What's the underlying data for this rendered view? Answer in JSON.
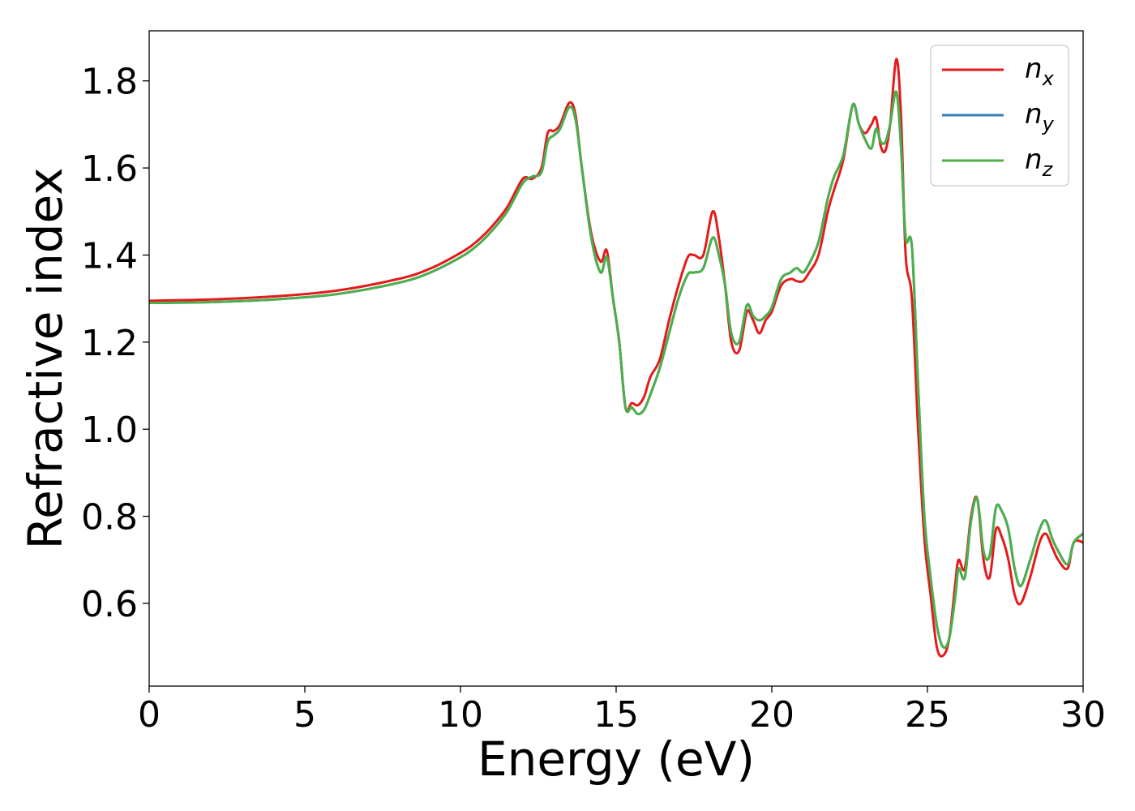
{
  "chart_data": {
    "type": "line",
    "xlabel": "Energy (eV)",
    "ylabel": "Refractive index",
    "xlim": [
      0,
      30
    ],
    "ylim": [
      0.41,
      1.915
    ],
    "xticks": [
      "0",
      "5",
      "10",
      "15",
      "20",
      "25",
      "30"
    ],
    "yticks": [
      "0.6",
      "0.8",
      "1.0",
      "1.2",
      "1.4",
      "1.6",
      "1.8"
    ],
    "legend_position": "top-right",
    "grid": false,
    "series": [
      {
        "name": "n",
        "subscript": "x",
        "color": "#e41a1c",
        "x": [
          0,
          2,
          4,
          6,
          8,
          9,
          10,
          10.5,
          11,
          11.5,
          12,
          12.3,
          12.6,
          12.8,
          13.0,
          13.2,
          13.5,
          13.7,
          13.9,
          14.2,
          14.5,
          14.7,
          14.9,
          15.1,
          15.3,
          15.5,
          15.7,
          15.9,
          16.1,
          16.4,
          16.7,
          17.0,
          17.3,
          17.5,
          17.8,
          18.1,
          18.3,
          18.5,
          18.7,
          18.95,
          19.2,
          19.4,
          19.6,
          19.8,
          20.0,
          20.3,
          20.6,
          20.8,
          21.0,
          21.2,
          21.5,
          21.8,
          22.0,
          22.3,
          22.6,
          22.8,
          23.0,
          23.2,
          23.35,
          23.5,
          23.65,
          23.8,
          24.0,
          24.15,
          24.3,
          24.5,
          24.7,
          24.9,
          25.1,
          25.3,
          25.5,
          25.7,
          25.9,
          26.0,
          26.2,
          26.4,
          26.6,
          26.8,
          27.0,
          27.2,
          27.4,
          27.6,
          27.8,
          28.0,
          28.3,
          28.6,
          28.8,
          29.0,
          29.2,
          29.5,
          29.7,
          30.0
        ],
        "y": [
          1.295,
          1.298,
          1.305,
          1.318,
          1.345,
          1.368,
          1.405,
          1.43,
          1.465,
          1.51,
          1.575,
          1.575,
          1.6,
          1.68,
          1.685,
          1.7,
          1.75,
          1.72,
          1.6,
          1.45,
          1.385,
          1.41,
          1.3,
          1.2,
          1.05,
          1.06,
          1.055,
          1.075,
          1.12,
          1.16,
          1.25,
          1.33,
          1.395,
          1.4,
          1.4,
          1.5,
          1.44,
          1.33,
          1.2,
          1.18,
          1.27,
          1.25,
          1.22,
          1.25,
          1.27,
          1.33,
          1.345,
          1.34,
          1.34,
          1.36,
          1.4,
          1.5,
          1.55,
          1.62,
          1.745,
          1.7,
          1.68,
          1.7,
          1.715,
          1.65,
          1.64,
          1.7,
          1.85,
          1.72,
          1.4,
          1.3,
          1.0,
          0.75,
          0.62,
          0.5,
          0.48,
          0.52,
          0.65,
          0.7,
          0.68,
          0.8,
          0.84,
          0.7,
          0.66,
          0.77,
          0.75,
          0.7,
          0.62,
          0.6,
          0.66,
          0.74,
          0.76,
          0.73,
          0.7,
          0.68,
          0.74,
          0.74
        ]
      },
      {
        "name": "n",
        "subscript": "y",
        "color": "#377eb8",
        "x": [
          0,
          2,
          4,
          6,
          8,
          9,
          10,
          10.5,
          11,
          11.5,
          12,
          12.3,
          12.6,
          12.8,
          13.0,
          13.2,
          13.5,
          13.7,
          13.9,
          14.2,
          14.5,
          14.7,
          14.9,
          15.1,
          15.3,
          15.5,
          15.7,
          15.9,
          16.1,
          16.4,
          16.7,
          17.0,
          17.3,
          17.5,
          17.8,
          18.1,
          18.3,
          18.5,
          18.7,
          18.95,
          19.2,
          19.4,
          19.6,
          19.8,
          20.0,
          20.3,
          20.6,
          20.8,
          21.0,
          21.2,
          21.5,
          21.8,
          22.0,
          22.3,
          22.6,
          22.8,
          23.0,
          23.2,
          23.35,
          23.5,
          23.65,
          23.8,
          24.0,
          24.15,
          24.3,
          24.5,
          24.7,
          24.9,
          25.1,
          25.3,
          25.5,
          25.7,
          25.9,
          26.0,
          26.2,
          26.4,
          26.6,
          26.8,
          27.0,
          27.2,
          27.4,
          27.6,
          27.8,
          28.0,
          28.3,
          28.6,
          28.8,
          29.0,
          29.2,
          29.5,
          29.7,
          30.0
        ],
        "y": [
          1.29,
          1.292,
          1.298,
          1.31,
          1.336,
          1.359,
          1.395,
          1.42,
          1.455,
          1.5,
          1.565,
          1.58,
          1.59,
          1.66,
          1.675,
          1.69,
          1.74,
          1.71,
          1.6,
          1.44,
          1.36,
          1.395,
          1.3,
          1.2,
          1.05,
          1.05,
          1.035,
          1.045,
          1.08,
          1.14,
          1.22,
          1.3,
          1.355,
          1.36,
          1.37,
          1.44,
          1.4,
          1.33,
          1.22,
          1.2,
          1.285,
          1.26,
          1.25,
          1.26,
          1.28,
          1.345,
          1.36,
          1.37,
          1.36,
          1.38,
          1.43,
          1.53,
          1.58,
          1.63,
          1.745,
          1.7,
          1.665,
          1.645,
          1.69,
          1.66,
          1.66,
          1.7,
          1.775,
          1.65,
          1.44,
          1.42,
          1.1,
          0.8,
          0.66,
          0.55,
          0.5,
          0.52,
          0.62,
          0.68,
          0.66,
          0.79,
          0.84,
          0.72,
          0.71,
          0.82,
          0.81,
          0.77,
          0.68,
          0.64,
          0.7,
          0.77,
          0.79,
          0.75,
          0.72,
          0.69,
          0.74,
          0.76
        ]
      },
      {
        "name": "n",
        "subscript": "z",
        "color": "#4daf4a",
        "x": [
          0,
          2,
          4,
          6,
          8,
          9,
          10,
          10.5,
          11,
          11.5,
          12,
          12.3,
          12.6,
          12.8,
          13.0,
          13.2,
          13.5,
          13.7,
          13.9,
          14.2,
          14.5,
          14.7,
          14.9,
          15.1,
          15.3,
          15.5,
          15.7,
          15.9,
          16.1,
          16.4,
          16.7,
          17.0,
          17.3,
          17.5,
          17.8,
          18.1,
          18.3,
          18.5,
          18.7,
          18.95,
          19.2,
          19.4,
          19.6,
          19.8,
          20.0,
          20.3,
          20.6,
          20.8,
          21.0,
          21.2,
          21.5,
          21.8,
          22.0,
          22.3,
          22.6,
          22.8,
          23.0,
          23.2,
          23.35,
          23.5,
          23.65,
          23.8,
          24.0,
          24.15,
          24.3,
          24.5,
          24.7,
          24.9,
          25.1,
          25.3,
          25.5,
          25.7,
          25.9,
          26.0,
          26.2,
          26.4,
          26.6,
          26.8,
          27.0,
          27.2,
          27.4,
          27.6,
          27.8,
          28.0,
          28.3,
          28.6,
          28.8,
          29.0,
          29.2,
          29.5,
          29.7,
          30.0
        ],
        "y": [
          1.29,
          1.292,
          1.298,
          1.31,
          1.336,
          1.359,
          1.395,
          1.42,
          1.455,
          1.5,
          1.565,
          1.58,
          1.59,
          1.66,
          1.675,
          1.69,
          1.74,
          1.71,
          1.6,
          1.44,
          1.36,
          1.395,
          1.3,
          1.2,
          1.05,
          1.05,
          1.035,
          1.045,
          1.08,
          1.14,
          1.22,
          1.3,
          1.355,
          1.36,
          1.37,
          1.44,
          1.4,
          1.33,
          1.22,
          1.2,
          1.285,
          1.26,
          1.25,
          1.26,
          1.28,
          1.345,
          1.36,
          1.37,
          1.36,
          1.38,
          1.43,
          1.53,
          1.58,
          1.63,
          1.745,
          1.7,
          1.665,
          1.645,
          1.69,
          1.66,
          1.66,
          1.7,
          1.775,
          1.65,
          1.44,
          1.42,
          1.1,
          0.8,
          0.66,
          0.55,
          0.5,
          0.52,
          0.62,
          0.68,
          0.66,
          0.79,
          0.84,
          0.72,
          0.71,
          0.82,
          0.81,
          0.77,
          0.68,
          0.64,
          0.7,
          0.77,
          0.79,
          0.75,
          0.72,
          0.69,
          0.74,
          0.76
        ]
      }
    ]
  }
}
